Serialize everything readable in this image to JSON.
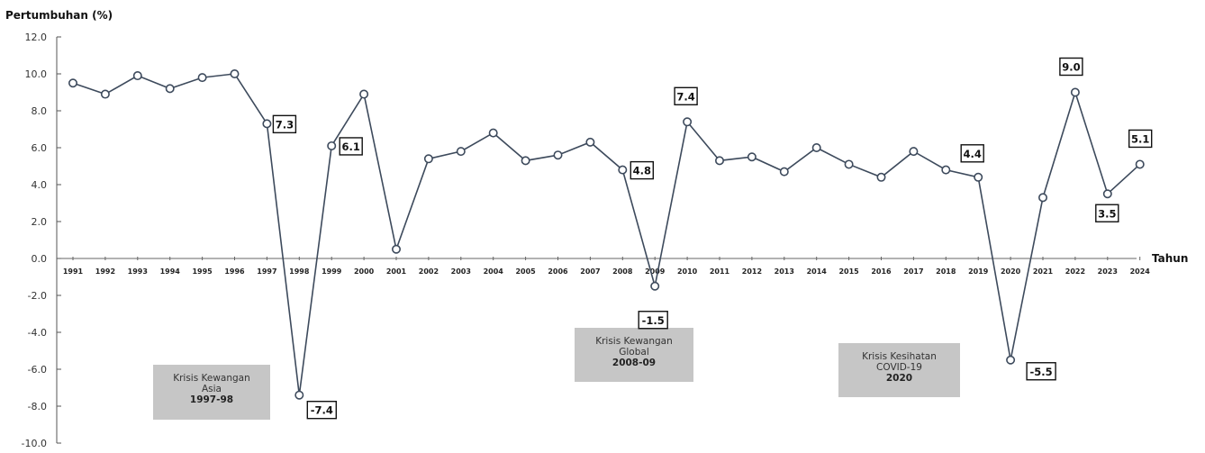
{
  "chart_data": {
    "type": "line",
    "ylabel": "Pertumbuhan (%)",
    "xlabel": "Tahun",
    "ylim": [
      -10.0,
      12.0
    ],
    "yticks": [
      "12.0",
      "10.0",
      "8.0",
      "6.0",
      "4.0",
      "2.0",
      "0.0",
      "-2.0",
      "-4.0",
      "-6.0",
      "-8.0",
      "-10.0"
    ],
    "categories": [
      "1991",
      "1992",
      "1993",
      "1994",
      "1995",
      "1996",
      "1997",
      "1998",
      "1999",
      "2000",
      "2001",
      "2002",
      "2003",
      "2004",
      "2005",
      "2006",
      "2007",
      "2008",
      "2009",
      "2010",
      "2011",
      "2012",
      "2013",
      "2014",
      "2015",
      "2016",
      "2017",
      "2018",
      "2019",
      "2020",
      "2021",
      "2022",
      "2023",
      "2024"
    ],
    "values": [
      9.5,
      8.9,
      9.9,
      9.2,
      9.8,
      10.0,
      7.3,
      -7.4,
      6.1,
      8.9,
      0.5,
      5.4,
      5.8,
      6.8,
      5.3,
      5.6,
      6.3,
      4.8,
      -1.5,
      7.4,
      5.3,
      5.5,
      4.7,
      6.0,
      5.1,
      4.4,
      5.8,
      4.8,
      4.4,
      -5.5,
      3.3,
      9.0,
      3.5,
      5.1
    ],
    "grid": false,
    "colors": {
      "line": "#3d4a5c",
      "marker_fill": "#ffffff",
      "annotation_box": "#c6c6c6"
    },
    "data_labels": [
      {
        "year": "1997",
        "text": "7.3"
      },
      {
        "year": "1998",
        "text": "-7.4"
      },
      {
        "year": "1999",
        "text": "6.1"
      },
      {
        "year": "2008",
        "text": "4.8"
      },
      {
        "year": "2009",
        "text": "-1.5"
      },
      {
        "year": "2010",
        "text": "7.4"
      },
      {
        "year": "2019",
        "text": "4.4"
      },
      {
        "year": "2020",
        "text": "-5.5"
      },
      {
        "year": "2022",
        "text": "9.0"
      },
      {
        "year": "2023",
        "text": "3.5"
      },
      {
        "year": "2024",
        "text": "5.1"
      }
    ],
    "annotations": [
      {
        "lines": [
          "Krisis Kewangan",
          "Asia"
        ],
        "bold": "1997-98"
      },
      {
        "lines": [
          "Krisis Kewangan",
          "Global"
        ],
        "bold": "2008-09"
      },
      {
        "lines": [
          "Krisis Kesihatan",
          "COVID-19"
        ],
        "bold": "2020"
      }
    ]
  }
}
